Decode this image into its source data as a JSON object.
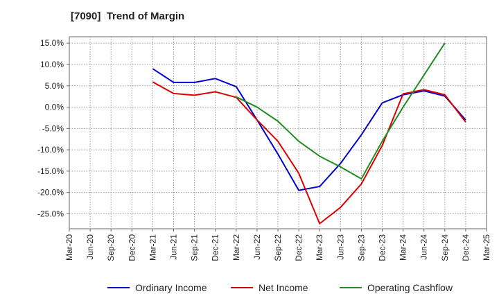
{
  "chart_data": {
    "type": "line",
    "title": "[7090]  Trend of Margin",
    "xlabel": "",
    "ylabel": "",
    "categories": [
      "Mar-20",
      "Jun-20",
      "Sep-20",
      "Dec-20",
      "Mar-21",
      "Jun-21",
      "Sep-21",
      "Dec-21",
      "Mar-22",
      "Jun-22",
      "Sep-22",
      "Dec-22",
      "Mar-23",
      "Jun-23",
      "Sep-23",
      "Dec-23",
      "Mar-24",
      "Jun-24",
      "Sep-24",
      "Dec-24",
      "Mar-25"
    ],
    "yticks": [
      "15.0%",
      "10.0%",
      "5.0%",
      "0.0%",
      "-5.0%",
      "-10.0%",
      "-15.0%",
      "-20.0%",
      "-25.0%"
    ],
    "ytick_values": [
      15,
      10,
      5,
      0,
      -5,
      -10,
      -15,
      -20,
      -25
    ],
    "ylim": [
      -28.5,
      16.5
    ],
    "grid": true,
    "legend_position": "bottom",
    "series": [
      {
        "name": "Ordinary Income",
        "color": "#0000cc",
        "values": [
          null,
          null,
          null,
          null,
          9.0,
          5.8,
          5.8,
          6.7,
          4.8,
          -3.0,
          -11.0,
          -19.5,
          -18.6,
          -13.2,
          -6.5,
          1.0,
          2.9,
          3.8,
          2.6,
          -3.0,
          null
        ]
      },
      {
        "name": "Net Income",
        "color": "#dd0000",
        "values": [
          null,
          null,
          null,
          null,
          5.9,
          3.2,
          2.8,
          3.6,
          2.3,
          -3.0,
          -8.0,
          -15.5,
          -27.3,
          -23.5,
          -18.0,
          -9.0,
          3.1,
          4.1,
          2.9,
          -3.5,
          null
        ]
      },
      {
        "name": "Operating Cashflow",
        "color": "#228b22",
        "values": [
          null,
          null,
          null,
          null,
          null,
          null,
          null,
          null,
          2.4,
          0.0,
          -3.3,
          -8.0,
          -11.5,
          -14.0,
          -16.8,
          -8.0,
          0.0,
          7.5,
          15.0,
          null,
          null
        ]
      }
    ]
  }
}
